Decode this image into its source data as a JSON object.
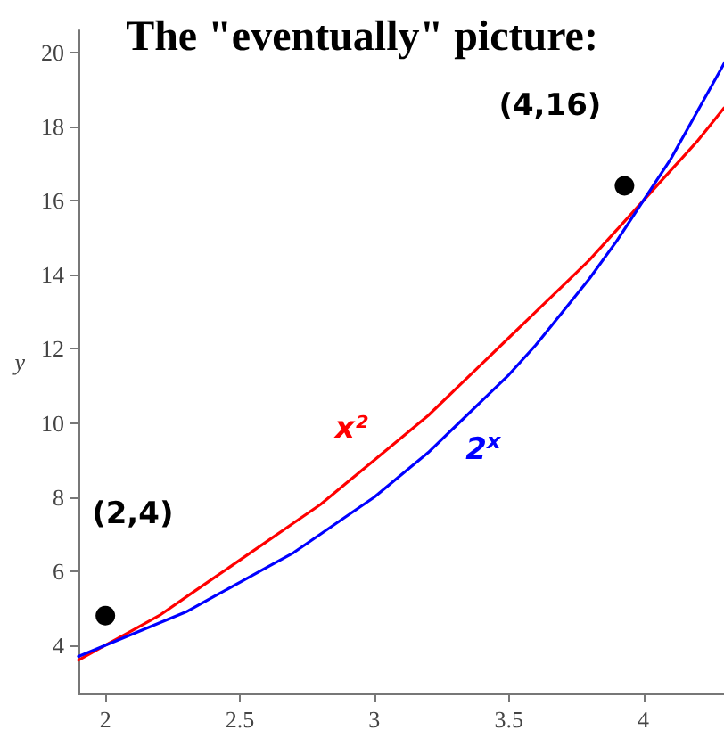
{
  "chart_data": {
    "type": "line",
    "title": "The \"eventually\" picture:",
    "ylabel": "y",
    "annotations": [
      "(2,4)",
      "(4,16)"
    ],
    "x": [
      1.9,
      2.0,
      2.1,
      2.2,
      2.3,
      2.4,
      2.5,
      2.6,
      2.7,
      2.8,
      2.9,
      3.0,
      3.1,
      3.2,
      3.3,
      3.4,
      3.5,
      3.6,
      3.7,
      3.8,
      3.9,
      4.0,
      4.1,
      4.2,
      4.3
    ],
    "series": [
      {
        "name": "x²",
        "color": "#ff0000",
        "values": [
          3.6,
          4.0,
          4.4,
          4.8,
          5.3,
          5.8,
          6.3,
          6.8,
          7.3,
          7.8,
          8.4,
          9.0,
          9.6,
          10.2,
          10.9,
          11.6,
          12.3,
          13.0,
          13.7,
          14.4,
          15.2,
          16.0,
          16.8,
          17.6,
          18.5
        ]
      },
      {
        "name": "2$^{x}$",
        "color": "#0000ff",
        "values": [
          3.7,
          4.0,
          4.3,
          4.6,
          4.9,
          5.3,
          5.7,
          6.1,
          6.5,
          7.0,
          7.5,
          8.0,
          8.6,
          9.2,
          9.9,
          10.6,
          11.3,
          12.1,
          13.0,
          13.9,
          14.9,
          16.0,
          17.1,
          18.4,
          19.7
        ]
      },
      {
        "type": "scatter",
        "color": "#000000",
        "marker": "circle",
        "x": [
          2.0,
          3.93
        ],
        "values": [
          4.8,
          16.4
        ]
      }
    ],
    "xlim": [
      1.9,
      4.3
    ],
    "xticks": [
      2,
      2.5,
      3,
      3.5,
      4
    ],
    "ylim": [
      2.7,
      20.6
    ],
    "yticks": [
      4,
      6,
      8,
      10,
      12,
      14,
      16,
      18,
      20
    ],
    "grid": false,
    "line_style": "solid",
    "marker": "none"
  }
}
